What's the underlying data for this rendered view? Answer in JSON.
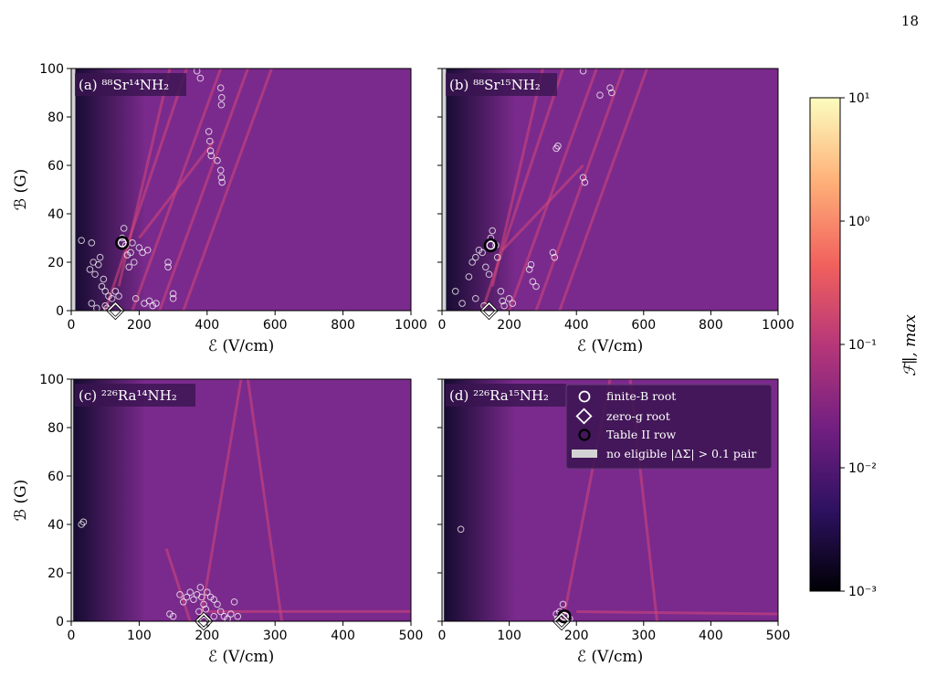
{
  "page_number": "18",
  "chart_data": [
    {
      "id": "a",
      "type": "heatmap",
      "panel_label": "(a) ⁸⁸Sr¹⁴NH₂",
      "xlabel": "ℰ (V/cm)",
      "ylabel": "ℬ (G)",
      "xlim": [
        0,
        1000
      ],
      "ylim": [
        0,
        100
      ],
      "xticks": [
        0,
        200,
        400,
        600,
        800,
        1000
      ],
      "yticks": [
        0,
        20,
        40,
        60,
        80,
        100
      ],
      "no_eligible_band_x": [
        0,
        12
      ],
      "finite_B_roots": [
        [
          30,
          29
        ],
        [
          60,
          28
        ],
        [
          65,
          20
        ],
        [
          55,
          17
        ],
        [
          70,
          15
        ],
        [
          80,
          19
        ],
        [
          85,
          22
        ],
        [
          90,
          10
        ],
        [
          95,
          13
        ],
        [
          100,
          8
        ],
        [
          110,
          6
        ],
        [
          120,
          5
        ],
        [
          130,
          8
        ],
        [
          140,
          6
        ],
        [
          150,
          30
        ],
        [
          155,
          34
        ],
        [
          160,
          27
        ],
        [
          165,
          23
        ],
        [
          170,
          18
        ],
        [
          175,
          24
        ],
        [
          180,
          28
        ],
        [
          185,
          20
        ],
        [
          190,
          5
        ],
        [
          200,
          26
        ],
        [
          210,
          24
        ],
        [
          215,
          3
        ],
        [
          225,
          25
        ],
        [
          230,
          4
        ],
        [
          240,
          2
        ],
        [
          250,
          3
        ],
        [
          285,
          18
        ],
        [
          285,
          20
        ],
        [
          300,
          7
        ],
        [
          300,
          5
        ],
        [
          370,
          99
        ],
        [
          380,
          96
        ],
        [
          405,
          74
        ],
        [
          408,
          70
        ],
        [
          410,
          66
        ],
        [
          412,
          64
        ],
        [
          430,
          62
        ],
        [
          440,
          58
        ],
        [
          442,
          55
        ],
        [
          444,
          53
        ],
        [
          440,
          92
        ],
        [
          443,
          88
        ],
        [
          442,
          85
        ],
        [
          60,
          3
        ],
        [
          75,
          1
        ],
        [
          100,
          2
        ],
        [
          105,
          1
        ]
      ],
      "zero_g_roots": [
        [
          130,
          0
        ]
      ],
      "table_II_rows": [
        [
          150,
          28
        ]
      ],
      "stripes": [
        [
          [
            100,
            0
          ],
          [
            340,
            100
          ]
        ],
        [
          [
            180,
            0
          ],
          [
            440,
            100
          ]
        ],
        [
          [
            260,
            0
          ],
          [
            520,
            100
          ]
        ],
        [
          [
            330,
            0
          ],
          [
            590,
            100
          ]
        ],
        [
          [
            200,
            30
          ],
          [
            420,
            70
          ]
        ],
        [
          [
            140,
            10
          ],
          [
            290,
            100
          ]
        ]
      ]
    },
    {
      "id": "b",
      "type": "heatmap",
      "panel_label": "(b) ⁸⁸Sr¹⁵NH₂",
      "xlabel": "ℰ (V/cm)",
      "ylabel": "",
      "xlim": [
        0,
        1000
      ],
      "ylim": [
        0,
        100
      ],
      "xticks": [
        0,
        200,
        400,
        600,
        800,
        1000
      ],
      "yticks": [
        0,
        20,
        40,
        60,
        80,
        100
      ],
      "no_eligible_band_x": [
        0,
        12
      ],
      "finite_B_roots": [
        [
          40,
          8
        ],
        [
          60,
          3
        ],
        [
          80,
          14
        ],
        [
          90,
          20
        ],
        [
          100,
          22
        ],
        [
          110,
          25
        ],
        [
          120,
          24
        ],
        [
          130,
          18
        ],
        [
          140,
          15
        ],
        [
          145,
          30
        ],
        [
          150,
          33
        ],
        [
          160,
          27
        ],
        [
          165,
          22
        ],
        [
          175,
          8
        ],
        [
          180,
          4
        ],
        [
          185,
          2
        ],
        [
          200,
          5
        ],
        [
          210,
          3
        ],
        [
          260,
          17
        ],
        [
          265,
          19
        ],
        [
          270,
          12
        ],
        [
          280,
          10
        ],
        [
          330,
          24
        ],
        [
          335,
          22
        ],
        [
          340,
          67
        ],
        [
          345,
          68
        ],
        [
          420,
          55
        ],
        [
          425,
          53
        ],
        [
          470,
          89
        ],
        [
          500,
          92
        ],
        [
          505,
          90
        ],
        [
          420,
          99
        ],
        [
          100,
          5
        ],
        [
          125,
          2
        ]
      ],
      "zero_g_roots": [
        [
          140,
          0
        ]
      ],
      "table_II_rows": [
        [
          145,
          27
        ]
      ],
      "stripes": [
        [
          [
            120,
            0
          ],
          [
            360,
            100
          ]
        ],
        [
          [
            200,
            0
          ],
          [
            460,
            100
          ]
        ],
        [
          [
            280,
            0
          ],
          [
            540,
            100
          ]
        ],
        [
          [
            350,
            0
          ],
          [
            610,
            100
          ]
        ],
        [
          [
            180,
            25
          ],
          [
            420,
            60
          ]
        ],
        [
          [
            150,
            10
          ],
          [
            300,
            100
          ]
        ]
      ]
    },
    {
      "id": "c",
      "type": "heatmap",
      "panel_label": "(c) ²²⁶Ra¹⁴NH₂",
      "xlabel": "ℰ (V/cm)",
      "ylabel": "ℬ (G)",
      "xlim": [
        0,
        500
      ],
      "ylim": [
        0,
        100
      ],
      "xticks": [
        0,
        100,
        200,
        300,
        400,
        500
      ],
      "yticks": [
        0,
        20,
        40,
        60,
        80,
        100
      ],
      "no_eligible_band_x": [
        0,
        3
      ],
      "finite_B_roots": [
        [
          15,
          40
        ],
        [
          18,
          41
        ],
        [
          145,
          3
        ],
        [
          150,
          2
        ],
        [
          160,
          11
        ],
        [
          165,
          8
        ],
        [
          170,
          10
        ],
        [
          175,
          12
        ],
        [
          180,
          9
        ],
        [
          185,
          11
        ],
        [
          190,
          14
        ],
        [
          192,
          10
        ],
        [
          195,
          7
        ],
        [
          198,
          5
        ],
        [
          200,
          12
        ],
        [
          205,
          10
        ],
        [
          210,
          9
        ],
        [
          215,
          7
        ],
        [
          220,
          4
        ],
        [
          225,
          2
        ],
        [
          230,
          1
        ],
        [
          235,
          3
        ],
        [
          240,
          8
        ],
        [
          245,
          2
        ],
        [
          188,
          4
        ],
        [
          210,
          2
        ]
      ],
      "zero_g_roots": [
        [
          195,
          0
        ]
      ],
      "table_II_rows": [
        [
          195,
          0
        ]
      ],
      "stripes": [
        [
          [
            190,
            0
          ],
          [
            250,
            100
          ]
        ],
        [
          [
            310,
            0
          ],
          [
            260,
            100
          ]
        ],
        [
          [
            200,
            4
          ],
          [
            500,
            4
          ]
        ],
        [
          [
            175,
            0
          ],
          [
            140,
            30
          ]
        ]
      ]
    },
    {
      "id": "d",
      "type": "heatmap",
      "panel_label": "(d) ²²⁶Ra¹⁵NH₂",
      "xlabel": "ℰ (V/cm)",
      "ylabel": "",
      "xlim": [
        0,
        500
      ],
      "ylim": [
        0,
        100
      ],
      "xticks": [
        0,
        100,
        200,
        300,
        400,
        500
      ],
      "yticks": [
        0,
        20,
        40,
        60,
        80,
        100
      ],
      "no_eligible_band_x": [
        0,
        3
      ],
      "finite_B_roots": [
        [
          28,
          38
        ],
        [
          170,
          3
        ],
        [
          175,
          4
        ],
        [
          180,
          7
        ],
        [
          185,
          2
        ],
        [
          190,
          1
        ],
        [
          172,
          1
        ]
      ],
      "zero_g_roots": [
        [
          178,
          0
        ]
      ],
      "table_II_rows": [
        [
          182,
          2
        ]
      ],
      "stripes": [
        [
          [
            180,
            0
          ],
          [
            250,
            100
          ]
        ],
        [
          [
            320,
            0
          ],
          [
            280,
            100
          ]
        ],
        [
          [
            200,
            4
          ],
          [
            500,
            3
          ]
        ]
      ]
    }
  ],
  "legend": {
    "finite": "finite-B root",
    "zero": "zero-g root",
    "table": "Table II row",
    "none": "no eligible |ΔΣ| > 0.1 pair"
  },
  "colorbar": {
    "label": "ℱ∥, max",
    "scale": "log",
    "range": [
      0.001,
      10
    ],
    "tick_values": [
      10,
      1,
      0.1,
      0.01,
      0.001
    ],
    "tick_labels": [
      "10¹",
      "10⁰",
      "10⁻¹",
      "10⁻²",
      "10⁻³"
    ],
    "colors": [
      "#000004",
      "#2c115f",
      "#721f81",
      "#b73779",
      "#f1605d",
      "#feb078",
      "#fcfdbf"
    ]
  },
  "colors": {
    "background_plot": "#7a2a8c",
    "dark_region": "#2d1160",
    "stripe": "#d6457a",
    "marker": "#ffffff",
    "no_eligible": "#d3d3d3"
  }
}
